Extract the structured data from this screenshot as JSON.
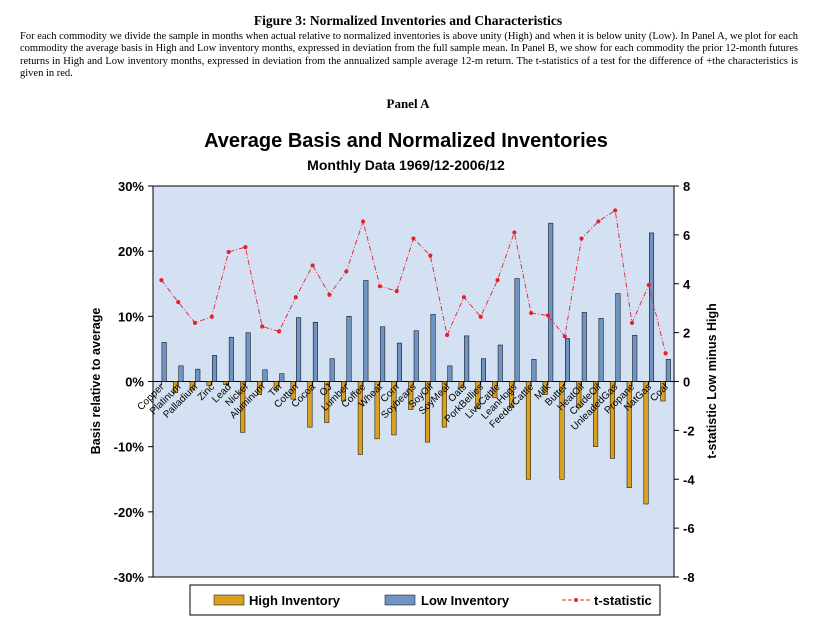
{
  "figure": {
    "title": "Figure 3: Normalized Inventories and Characteristics",
    "caption": "For each commodity we divide the sample in months when actual relative to normalized inventories is above unity (High) and when it is below unity (Low). In Panel A, we plot for each commodity the average basis in High and Low inventory months, expressed in deviation from the full sample mean. In Panel B, we show for each commodity the prior 12-month futures returns in High and Low inventory months, expressed in deviation from the annualized sample average 12-m return. The t-statistics of a test for the difference of +the characteristics is given in red.",
    "panel_label": "Panel A"
  },
  "colors": {
    "plot_bg": "#d4e1f3",
    "high": "#d9a021",
    "low": "#6f93c2",
    "tstat": "#e8202a"
  },
  "chart_data": {
    "type": "bar",
    "title": "Average Basis and Normalized Inventories",
    "subtitle": "Monthly Data 1969/12-2006/12",
    "ylabel": "Basis relative to average",
    "y2label": "t-statistic Low minus High",
    "ylim": [
      -0.3,
      0.3
    ],
    "y2lim": [
      -8,
      8
    ],
    "yticks": [
      "30%",
      "20%",
      "10%",
      "0%",
      "-10%",
      "-20%",
      "-30%"
    ],
    "y2ticks": [
      "8",
      "6",
      "4",
      "2",
      "0",
      "-2",
      "-4",
      "-6",
      "-8"
    ],
    "legend_position": "bottom",
    "categories": [
      "Copper",
      "Platinum",
      "Palladium",
      "Zinc",
      "Lead",
      "Nickel",
      "Aluminum",
      "Tin",
      "Cotton",
      "Cocoa",
      "OJ",
      "Lumber",
      "Coffee",
      "Wheat",
      "Corn",
      "Soybeans",
      "SoyOil",
      "SoyMeal",
      "Oats",
      "PorkBellies",
      "LiveCattle",
      "LeanHogs",
      "FeederCattle",
      "Milk",
      "Butter",
      "HeatOil",
      "CrudeOil",
      "UnleadedGas",
      "Propane",
      "NatGas",
      "Coal"
    ],
    "series": [
      {
        "name": "High Inventory",
        "values": [
          0.0,
          -0.017,
          -0.013,
          -0.006,
          -0.005,
          -0.078,
          -0.02,
          -0.013,
          -0.027,
          -0.07,
          -0.063,
          -0.03,
          -0.112,
          -0.088,
          -0.082,
          -0.043,
          -0.093,
          -0.07,
          -0.01,
          -0.042,
          -0.025,
          -0.04,
          -0.15,
          -0.02,
          -0.15,
          -0.04,
          -0.1,
          -0.118,
          -0.163,
          -0.188,
          -0.03
        ]
      },
      {
        "name": "Low Inventory",
        "values": [
          0.06,
          0.024,
          0.019,
          0.04,
          0.068,
          0.075,
          0.018,
          0.012,
          0.098,
          0.091,
          0.035,
          0.1,
          0.155,
          0.084,
          0.059,
          0.078,
          0.103,
          0.024,
          0.07,
          0.035,
          0.056,
          0.158,
          0.034,
          0.243,
          0.066,
          0.106,
          0.097,
          0.135,
          0.071,
          0.228,
          0.034
        ]
      },
      {
        "name": "t-statistic",
        "axis": "right",
        "values": [
          4.15,
          3.25,
          2.4,
          2.65,
          5.3,
          5.5,
          2.25,
          2.05,
          3.45,
          4.75,
          3.55,
          4.5,
          6.55,
          3.9,
          3.7,
          5.85,
          5.15,
          1.9,
          3.45,
          2.65,
          4.15,
          6.1,
          2.8,
          2.7,
          1.85,
          5.85,
          6.55,
          7.0,
          2.4,
          3.95,
          1.15
        ]
      }
    ]
  }
}
